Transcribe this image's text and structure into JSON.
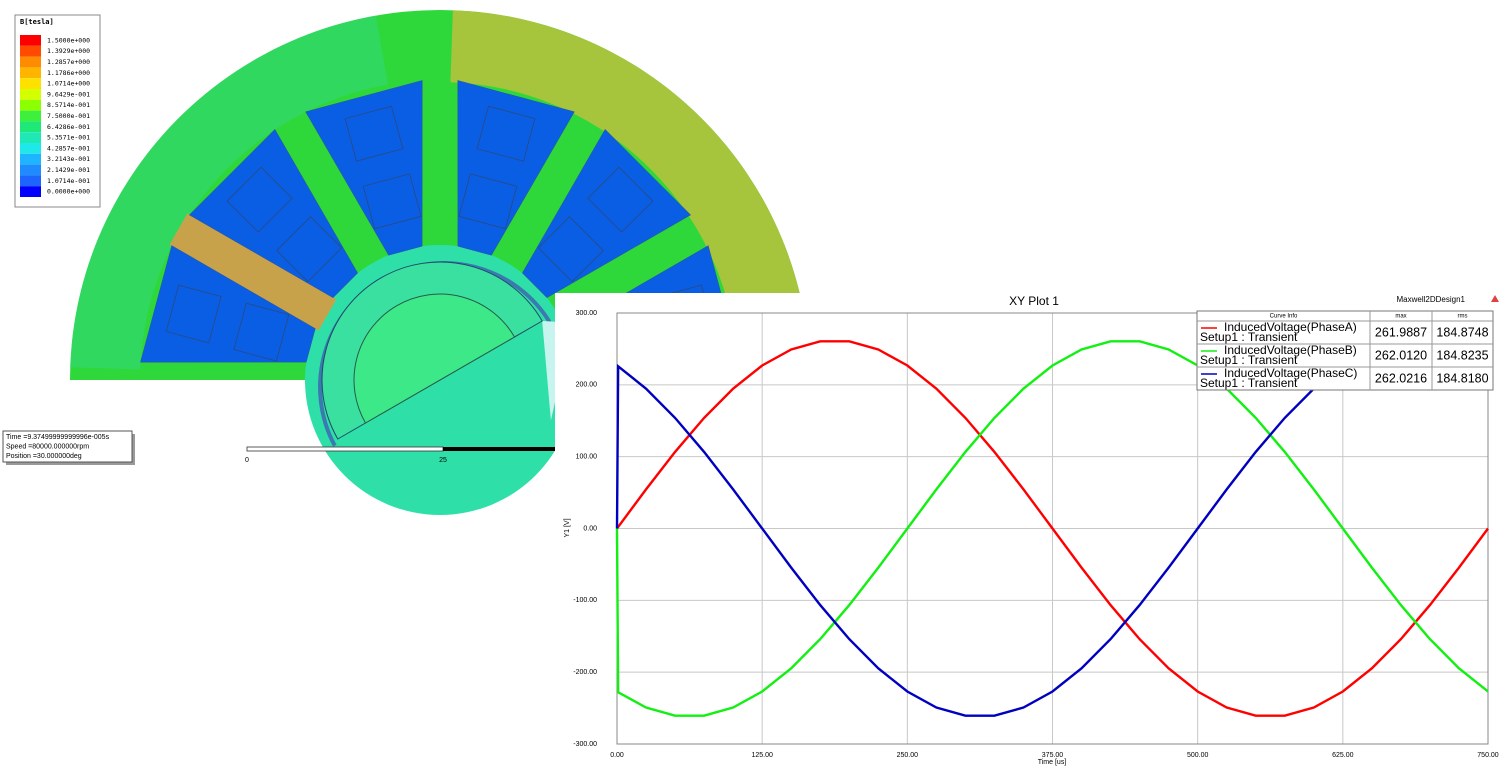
{
  "field_plot": {
    "legend_title": "B[tesla]",
    "legend_labels": [
      "1.5000e+000",
      "1.3929e+000",
      "1.2857e+000",
      "1.1786e+000",
      "1.0714e+000",
      "9.6429e-001",
      "8.5714e-001",
      "7.5000e-001",
      "6.4286e-001",
      "5.3571e-001",
      "4.2857e-001",
      "3.2143e-001",
      "2.1429e-001",
      "1.0714e-001",
      "0.0000e+000"
    ],
    "legend_colors": [
      "#ff0000",
      "#ff4a00",
      "#ff8c00",
      "#ffb400",
      "#ffe100",
      "#d4ff00",
      "#8cff00",
      "#3cf03c",
      "#1ee878",
      "#1ee8b4",
      "#1ee8e8",
      "#1eb4ff",
      "#1e8cff",
      "#1e64ff",
      "#0000ff"
    ],
    "info": [
      "Time     =9.37499999999996e-005s",
      "Speed    =80000.000000rpm",
      "Position =30.000000deg"
    ],
    "scale_labels": [
      0,
      25
    ]
  },
  "chart_data": {
    "type": "line",
    "title": "XY Plot 1",
    "design": "Maxwell2DDesign1",
    "xlabel": "Time [us]",
    "ylabel": "Y1 [V]",
    "x": [
      0,
      1,
      25,
      50,
      75,
      100,
      125,
      150,
      175,
      200,
      225,
      250,
      275,
      300,
      325,
      350,
      375,
      400,
      425,
      450,
      475,
      500,
      525,
      550,
      575,
      600,
      625,
      650,
      675,
      700,
      725,
      750
    ],
    "series": [
      {
        "name": "InducedVoltage(PhaseA)",
        "solution": "Setup1 : Transient",
        "color": "#ff0000",
        "max": "261.9887",
        "rms": "184.8748",
        "values": [
          0,
          2.2,
          54.5,
          106.6,
          154.0,
          194.7,
          226.9,
          249.2,
          260.6,
          260.6,
          249.2,
          226.9,
          194.7,
          154.0,
          106.6,
          54.5,
          0,
          -54.5,
          -106.6,
          -154.0,
          -194.7,
          -226.9,
          -249.2,
          -260.6,
          -260.6,
          -249.2,
          -226.9,
          -194.7,
          -154.0,
          -106.6,
          -54.5,
          0
        ]
      },
      {
        "name": "InducedVoltage(PhaseB)",
        "solution": "Setup1 : Transient",
        "color": "#12f012",
        "max": "262.0120",
        "rms": "184.8235",
        "values": [
          0,
          -228.0,
          -249.2,
          -260.6,
          -260.6,
          -249.2,
          -226.9,
          -194.7,
          -154.0,
          -106.6,
          -54.5,
          0,
          54.5,
          106.6,
          154.0,
          194.7,
          226.9,
          249.2,
          260.6,
          260.6,
          249.2,
          226.9,
          194.7,
          154.0,
          106.6,
          54.5,
          0,
          -54.5,
          -106.6,
          -154.0,
          -194.7,
          -226.9
        ]
      },
      {
        "name": "InducedVoltage(PhaseC)",
        "solution": "Setup1 : Transient",
        "color": "#0000c0",
        "max": "262.0216",
        "rms": "184.8180",
        "values": [
          0,
          225.8,
          194.7,
          154.0,
          106.6,
          54.5,
          0,
          -54.5,
          -106.6,
          -154.0,
          -194.7,
          -226.9,
          -249.2,
          -260.6,
          -260.6,
          -249.2,
          -226.9,
          -194.7,
          -154.0,
          -106.6,
          -54.5,
          0,
          54.5,
          106.6,
          154.0,
          194.7,
          226.9,
          249.2,
          260.6,
          260.6,
          249.2,
          226.9
        ]
      }
    ],
    "legend": {
      "header": [
        "Curve Info",
        "max",
        "rms"
      ]
    },
    "xlim": [
      0,
      750
    ],
    "ylim": [
      -300,
      300
    ],
    "xticks": [
      {
        "value": 0,
        "label": "0.00"
      },
      {
        "value": 125,
        "label": "125.00"
      },
      {
        "value": 250,
        "label": "250.00"
      },
      {
        "value": 375,
        "label": "375.00"
      },
      {
        "value": 500,
        "label": "500.00"
      },
      {
        "value": 625,
        "label": "625.00"
      },
      {
        "value": 750,
        "label": "750.00"
      }
    ],
    "yticks": [
      {
        "value": -300,
        "label": "-300.00"
      },
      {
        "value": -200,
        "label": "-200.00"
      },
      {
        "value": -100,
        "label": "-100.00"
      },
      {
        "value": 0,
        "label": "0.00"
      },
      {
        "value": 100,
        "label": "100.00"
      },
      {
        "value": 200,
        "label": "200.00"
      },
      {
        "value": 300,
        "label": "300.00"
      }
    ],
    "grid": true
  }
}
